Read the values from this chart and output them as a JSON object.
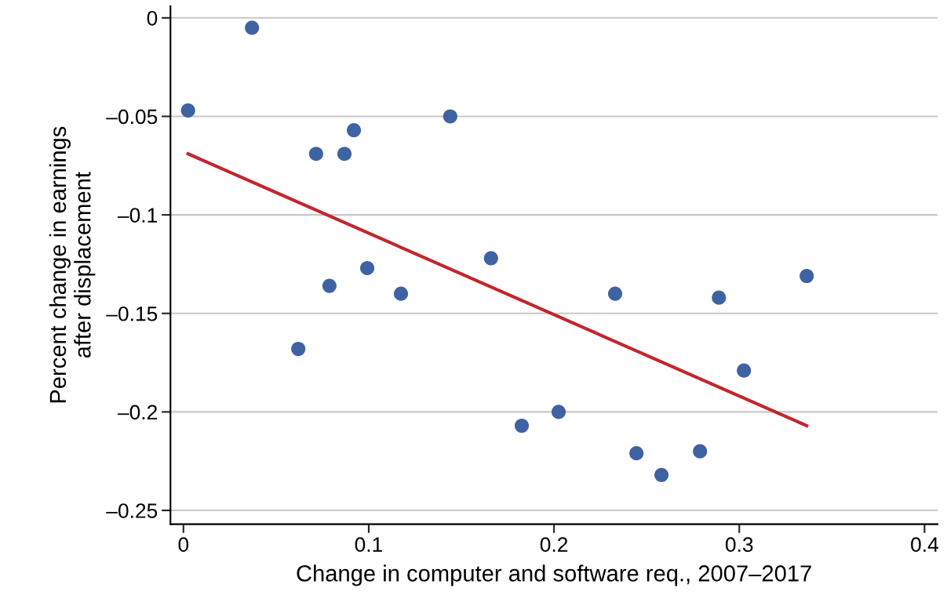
{
  "chart_data": {
    "type": "scatter",
    "xlabel": "Change in computer and software req., 2007–2017",
    "ylabel": "Percent change in earnings\nafter displacement",
    "xlim": [
      -0.007,
      0.407
    ],
    "ylim": [
      -0.257,
      0.006
    ],
    "xticks": [
      0,
      0.1,
      0.2,
      0.3,
      0.4
    ],
    "yticks": [
      0,
      {
        "value": -0.05,
        "label": "–0.05"
      },
      {
        "value": -0.1,
        "label": "–0.1"
      },
      {
        "value": -0.15,
        "label": "–0.15"
      },
      {
        "value": -0.2,
        "label": "–0.2"
      },
      {
        "value": -0.25,
        "label": "–0.25"
      }
    ],
    "grid": "y",
    "legend": false,
    "series": [
      {
        "marker": "circle",
        "color": "#3f62a3",
        "x": [
          0.0025,
          0.037,
          0.062,
          0.0716,
          0.0788,
          0.0869,
          0.092,
          0.0992,
          0.1174,
          0.144,
          0.166,
          0.1826,
          0.2025,
          0.233,
          0.2445,
          0.258,
          0.2788,
          0.289,
          0.3025,
          0.3364
        ],
        "values": [
          -0.047,
          -0.005,
          -0.168,
          -0.069,
          -0.136,
          -0.069,
          -0.057,
          -0.127,
          -0.14,
          -0.05,
          -0.122,
          -0.207,
          -0.2,
          -0.14,
          -0.221,
          -0.232,
          -0.22,
          -0.142,
          -0.179,
          -0.131
        ]
      },
      {
        "type": "line",
        "color": "#c1272d",
        "line_style": "solid",
        "x": [
          0.0025,
          0.3364
        ],
        "values": [
          -0.069,
          -0.207
        ]
      }
    ]
  }
}
